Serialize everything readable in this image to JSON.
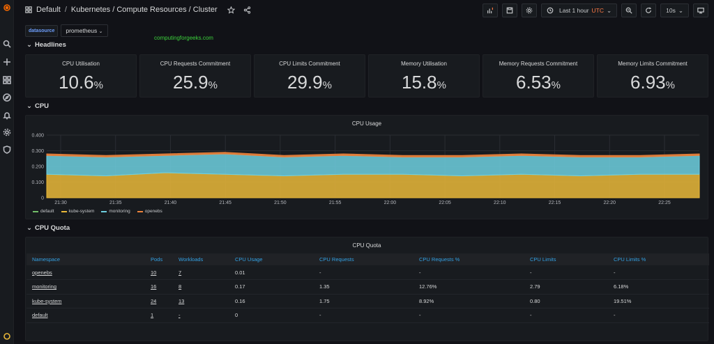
{
  "breadcrumb": {
    "folder": "Default",
    "separator": "/",
    "dashboard": "Kubernetes / Compute Resources / Cluster"
  },
  "toolbar": {
    "time_range": "Last 1 hour",
    "timezone": "UTC",
    "refresh": "10s"
  },
  "variables": {
    "label": "datasource",
    "value": "prometheus"
  },
  "watermark": "computingforgeeks.com",
  "rows": {
    "headlines": "Headlines",
    "cpu": "CPU",
    "cpu_quota": "CPU Quota"
  },
  "stats": [
    {
      "title": "CPU Utilisation",
      "value": "10.6",
      "unit": "%"
    },
    {
      "title": "CPU Requests Commitment",
      "value": "25.9",
      "unit": "%"
    },
    {
      "title": "CPU Limits Commitment",
      "value": "29.9",
      "unit": "%"
    },
    {
      "title": "Memory Utilisation",
      "value": "15.8",
      "unit": "%"
    },
    {
      "title": "Memory Requests Commitment",
      "value": "6.53",
      "unit": "%"
    },
    {
      "title": "Memory Limits Commitment",
      "value": "6.93",
      "unit": "%"
    }
  ],
  "chart_data": {
    "type": "area",
    "title": "CPU Usage",
    "ylim": [
      0,
      0.4
    ],
    "y_ticks": [
      "0",
      "0.100",
      "0.200",
      "0.300",
      "0.400"
    ],
    "x_ticks": [
      "21:30",
      "21:35",
      "21:40",
      "21:45",
      "21:50",
      "21:55",
      "22:00",
      "22:05",
      "22:10",
      "22:15",
      "22:20",
      "22:25"
    ],
    "stacked": true,
    "grid": true,
    "legend_position": "bottom-left",
    "series": [
      {
        "name": "default",
        "color": "#73bf69",
        "values": [
          0,
          0,
          0,
          0,
          0,
          0,
          0,
          0,
          0,
          0,
          0,
          0
        ]
      },
      {
        "name": "kube-system",
        "color": "#eab839",
        "values": [
          0.15,
          0.14,
          0.16,
          0.15,
          0.14,
          0.15,
          0.15,
          0.14,
          0.15,
          0.14,
          0.15,
          0.15
        ]
      },
      {
        "name": "monitoring",
        "color": "#6ed0e0",
        "values": [
          0.12,
          0.12,
          0.11,
          0.13,
          0.12,
          0.12,
          0.11,
          0.12,
          0.12,
          0.12,
          0.11,
          0.12
        ]
      },
      {
        "name": "openebs",
        "color": "#ef843c",
        "values": [
          0.01,
          0.01,
          0.01,
          0.01,
          0.01,
          0.01,
          0.01,
          0.01,
          0.01,
          0.01,
          0.01,
          0.01
        ]
      }
    ]
  },
  "quota": {
    "title": "CPU Quota",
    "headers": [
      "Namespace",
      "Pods",
      "Workloads",
      "CPU Usage",
      "CPU Requests",
      "CPU Requests %",
      "CPU Limits",
      "CPU Limits %"
    ],
    "rows": [
      [
        "openebs",
        "10",
        "7",
        "0.01",
        "-",
        "-",
        "-",
        "-"
      ],
      [
        "monitoring",
        "16",
        "8",
        "0.17",
        "1.35",
        "12.76%",
        "2.79",
        "6.18%"
      ],
      [
        "kube-system",
        "24",
        "13",
        "0.16",
        "1.75",
        "8.92%",
        "0.80",
        "19.51%"
      ],
      [
        "default",
        "1",
        "-",
        "0",
        "-",
        "-",
        "-",
        "-"
      ]
    ]
  }
}
